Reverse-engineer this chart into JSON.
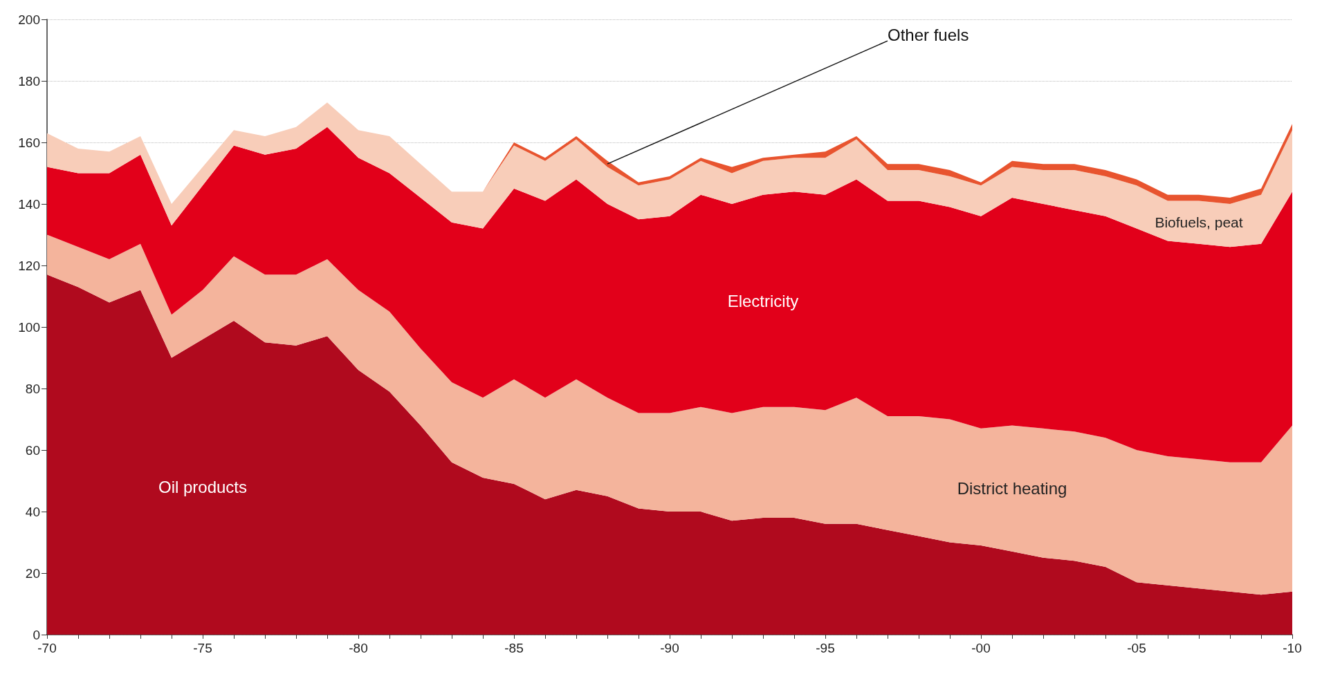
{
  "chart_data": {
    "type": "area",
    "stacked": true,
    "legend": false,
    "grid": "y",
    "categories": [
      "-70",
      null,
      null,
      null,
      null,
      "-75",
      null,
      null,
      null,
      null,
      "-80",
      null,
      null,
      null,
      null,
      "-85",
      null,
      null,
      null,
      null,
      "-90",
      null,
      null,
      null,
      null,
      "-95",
      null,
      null,
      null,
      null,
      "-00",
      null,
      null,
      null,
      null,
      "-05",
      null,
      null,
      null,
      null,
      "-10"
    ],
    "ylim": [
      0,
      200
    ],
    "yticks": [
      0,
      20,
      40,
      60,
      80,
      100,
      120,
      140,
      160,
      180,
      200
    ],
    "series": [
      {
        "name": "Oil products",
        "color": "#b00a1e",
        "values": [
          117,
          113,
          108,
          112,
          90,
          96,
          102,
          95,
          94,
          97,
          86,
          79,
          68,
          56,
          51,
          49,
          44,
          47,
          45,
          41,
          40,
          40,
          37,
          38,
          38,
          36,
          36,
          34,
          32,
          30,
          29,
          27,
          25,
          24,
          22,
          17,
          16,
          15,
          14,
          13,
          14
        ]
      },
      {
        "name": "District heating",
        "color": "#f4b49c",
        "values": [
          13,
          13,
          14,
          15,
          14,
          16,
          21,
          22,
          23,
          25,
          26,
          26,
          25,
          26,
          26,
          34,
          33,
          36,
          32,
          31,
          32,
          34,
          35,
          36,
          36,
          37,
          41,
          37,
          39,
          40,
          38,
          41,
          42,
          42,
          42,
          43,
          42,
          42,
          42,
          43,
          54
        ]
      },
      {
        "name": "Electricity",
        "color": "#e2001a",
        "values": [
          22,
          24,
          28,
          29,
          29,
          34,
          36,
          39,
          41,
          43,
          43,
          45,
          49,
          52,
          55,
          62,
          64,
          65,
          63,
          63,
          64,
          69,
          68,
          69,
          70,
          70,
          71,
          70,
          70,
          69,
          69,
          74,
          73,
          72,
          72,
          72,
          70,
          70,
          70,
          71,
          76
        ]
      },
      {
        "name": "Biofuels, peat",
        "color": "#f8cdb9",
        "values": [
          11,
          8,
          7,
          6,
          7,
          6,
          5,
          6,
          7,
          8,
          9,
          12,
          11,
          10,
          12,
          14,
          13,
          13,
          12,
          11,
          12,
          11,
          10,
          11,
          11,
          12,
          13,
          10,
          10,
          10,
          10,
          10,
          11,
          13,
          13,
          14,
          13,
          14,
          14,
          16,
          20
        ]
      },
      {
        "name": "Other fuels",
        "color": "#e8542f",
        "values": [
          0,
          0,
          0,
          0,
          0,
          0,
          0,
          0,
          0,
          0,
          0,
          0,
          0,
          0,
          0,
          1,
          1,
          1,
          2,
          1,
          1,
          1,
          2,
          1,
          1,
          2,
          1,
          2,
          2,
          2,
          1,
          2,
          2,
          2,
          2,
          2,
          2,
          2,
          2,
          2,
          2
        ]
      }
    ]
  }
}
